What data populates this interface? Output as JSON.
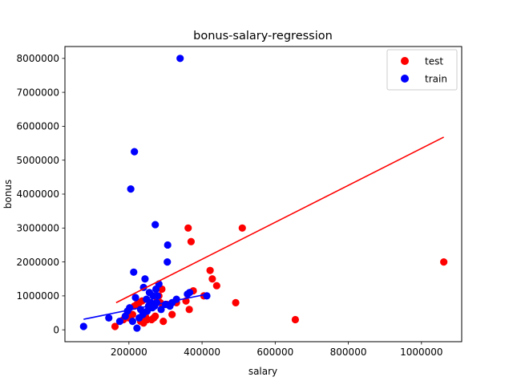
{
  "chart_data": {
    "type": "scatter",
    "title": "bonus-salary-regression",
    "xlabel": "salary",
    "ylabel": "bonus",
    "xlim": [
      25000,
      1110000
    ],
    "ylim": [
      -350000,
      8350000
    ],
    "xticks": [
      200000,
      400000,
      600000,
      800000,
      1000000
    ],
    "xtick_labels": [
      "200000",
      "400000",
      "600000",
      "800000",
      "1000000"
    ],
    "yticks": [
      0,
      1000000,
      2000000,
      3000000,
      4000000,
      5000000,
      6000000,
      7000000,
      8000000
    ],
    "ytick_labels": [
      "0",
      "1000000",
      "2000000",
      "3000000",
      "4000000",
      "5000000",
      "6000000",
      "7000000",
      "8000000"
    ],
    "grid": false,
    "legend_position": "top-right",
    "series": [
      {
        "name": "test",
        "kind": "scatter",
        "color": "#ff0000",
        "points": [
          [
            162000,
            100000
          ],
          [
            185000,
            300000
          ],
          [
            200000,
            350000
          ],
          [
            210000,
            450000
          ],
          [
            215000,
            700000
          ],
          [
            222000,
            750000
          ],
          [
            228000,
            800000
          ],
          [
            232000,
            250000
          ],
          [
            236000,
            850000
          ],
          [
            240000,
            200000
          ],
          [
            245000,
            400000
          ],
          [
            250000,
            300000
          ],
          [
            254000,
            700000
          ],
          [
            258000,
            800000
          ],
          [
            262000,
            300000
          ],
          [
            268000,
            350000
          ],
          [
            272000,
            400000
          ],
          [
            276000,
            950000
          ],
          [
            282000,
            1000000
          ],
          [
            286000,
            800000
          ],
          [
            290000,
            1200000
          ],
          [
            294000,
            250000
          ],
          [
            304000,
            750000
          ],
          [
            318000,
            450000
          ],
          [
            330000,
            800000
          ],
          [
            356000,
            850000
          ],
          [
            362000,
            3000000
          ],
          [
            365000,
            600000
          ],
          [
            370000,
            2600000
          ],
          [
            376000,
            1150000
          ],
          [
            405000,
            1000000
          ],
          [
            422000,
            1750000
          ],
          [
            428000,
            1500000
          ],
          [
            440000,
            1300000
          ],
          [
            492000,
            800000
          ],
          [
            510000,
            3000000
          ],
          [
            655000,
            300000
          ],
          [
            1061000,
            2000000
          ]
        ]
      },
      {
        "name": "train",
        "kind": "scatter",
        "color": "#0000ff",
        "points": [
          [
            76000,
            100000
          ],
          [
            145000,
            350000
          ],
          [
            175000,
            250000
          ],
          [
            190000,
            400000
          ],
          [
            196000,
            550000
          ],
          [
            202000,
            650000
          ],
          [
            205000,
            4150000
          ],
          [
            210000,
            250000
          ],
          [
            213000,
            1700000
          ],
          [
            215000,
            5250000
          ],
          [
            218000,
            950000
          ],
          [
            222000,
            50000
          ],
          [
            228000,
            350000
          ],
          [
            232000,
            600000
          ],
          [
            238000,
            450000
          ],
          [
            240000,
            1250000
          ],
          [
            244000,
            1500000
          ],
          [
            248000,
            900000
          ],
          [
            250000,
            550000
          ],
          [
            254000,
            700000
          ],
          [
            256000,
            1100000
          ],
          [
            260000,
            800000
          ],
          [
            264000,
            650000
          ],
          [
            266000,
            1000000
          ],
          [
            270000,
            700000
          ],
          [
            272000,
            3100000
          ],
          [
            274000,
            1200000
          ],
          [
            276000,
            800000
          ],
          [
            278000,
            1000000
          ],
          [
            282000,
            1350000
          ],
          [
            288000,
            600000
          ],
          [
            300000,
            750000
          ],
          [
            305000,
            2000000
          ],
          [
            306000,
            2500000
          ],
          [
            312000,
            700000
          ],
          [
            318000,
            800000
          ],
          [
            330000,
            900000
          ],
          [
            340000,
            8000000
          ],
          [
            360000,
            1050000
          ],
          [
            366000,
            1100000
          ],
          [
            413000,
            1000000
          ]
        ]
      }
    ],
    "regression_lines": [
      {
        "color": "#ff0000",
        "x": [
          165000,
          1061000
        ],
        "y": [
          800000,
          5680000
        ]
      },
      {
        "color": "#0000ff",
        "x": [
          76000,
          413000
        ],
        "y": [
          310000,
          1050000
        ]
      }
    ]
  }
}
